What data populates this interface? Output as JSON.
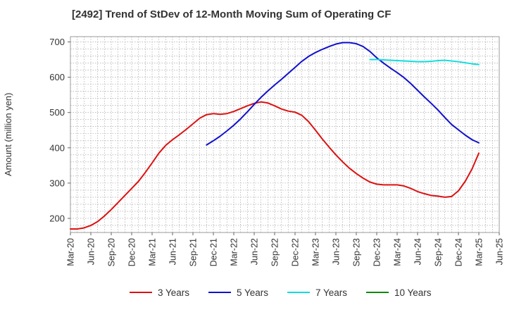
{
  "chart_data": {
    "type": "line",
    "title": "[2492]  Trend of StDev of 12-Month Moving Sum of Operating CF",
    "xlabel": "",
    "ylabel": "Amount (million yen)",
    "ylim": [
      160,
      715
    ],
    "yticks": [
      200,
      300,
      400,
      500,
      600,
      700
    ],
    "x_tick_labels": [
      "Mar-20",
      "Jun-20",
      "Sep-20",
      "Dec-20",
      "Mar-21",
      "Jun-21",
      "Sep-21",
      "Dec-21",
      "Mar-22",
      "Jun-22",
      "Sep-22",
      "Dec-22",
      "Mar-23",
      "Jun-23",
      "Sep-23",
      "Dec-23",
      "Mar-24",
      "Jun-24",
      "Sep-24",
      "Dec-24",
      "Mar-25",
      "Jun-25"
    ],
    "grid": true,
    "legend_position": "bottom",
    "series": [
      {
        "name": "3 Years",
        "color": "#dd1111",
        "values": [
          [
            "Mar-20",
            170
          ],
          [
            "Apr-20",
            170
          ],
          [
            "May-20",
            173
          ],
          [
            "Jun-20",
            180
          ],
          [
            "Jul-20",
            191
          ],
          [
            "Aug-20",
            207
          ],
          [
            "Sep-20",
            225
          ],
          [
            "Oct-20",
            245
          ],
          [
            "Nov-20",
            265
          ],
          [
            "Dec-20",
            285
          ],
          [
            "Jan-21",
            305
          ],
          [
            "Feb-21",
            330
          ],
          [
            "Mar-21",
            357
          ],
          [
            "Apr-21",
            385
          ],
          [
            "May-21",
            407
          ],
          [
            "Jun-21",
            423
          ],
          [
            "Jul-21",
            437
          ],
          [
            "Aug-21",
            452
          ],
          [
            "Sep-21",
            468
          ],
          [
            "Oct-21",
            484
          ],
          [
            "Nov-21",
            494
          ],
          [
            "Dec-21",
            497
          ],
          [
            "Jan-22",
            495
          ],
          [
            "Feb-22",
            497
          ],
          [
            "Mar-22",
            503
          ],
          [
            "Apr-22",
            511
          ],
          [
            "May-22",
            519
          ],
          [
            "Jun-22",
            526
          ],
          [
            "Jul-22",
            530
          ],
          [
            "Aug-22",
            527
          ],
          [
            "Sep-22",
            519
          ],
          [
            "Oct-22",
            510
          ],
          [
            "Nov-22",
            504
          ],
          [
            "Dec-22",
            501
          ],
          [
            "Jan-23",
            492
          ],
          [
            "Feb-23",
            474
          ],
          [
            "Mar-23",
            450
          ],
          [
            "Apr-23",
            425
          ],
          [
            "May-23",
            402
          ],
          [
            "Jun-23",
            380
          ],
          [
            "Jul-23",
            360
          ],
          [
            "Aug-23",
            342
          ],
          [
            "Sep-23",
            327
          ],
          [
            "Oct-23",
            314
          ],
          [
            "Nov-23",
            303
          ],
          [
            "Dec-23",
            297
          ],
          [
            "Jan-24",
            295
          ],
          [
            "Feb-24",
            295
          ],
          [
            "Mar-24",
            295
          ],
          [
            "Apr-24",
            292
          ],
          [
            "May-24",
            285
          ],
          [
            "Jun-24",
            276
          ],
          [
            "Jul-24",
            270
          ],
          [
            "Aug-24",
            265
          ],
          [
            "Sep-24",
            263
          ],
          [
            "Oct-24",
            260
          ],
          [
            "Nov-24",
            262
          ],
          [
            "Dec-24",
            278
          ],
          [
            "Jan-25",
            305
          ],
          [
            "Feb-25",
            340
          ],
          [
            "Mar-25",
            385
          ]
        ]
      },
      {
        "name": "5 Years",
        "color": "#1111cc",
        "values": [
          [
            "Nov-21",
            408
          ],
          [
            "Dec-21",
            420
          ],
          [
            "Jan-22",
            433
          ],
          [
            "Feb-22",
            448
          ],
          [
            "Mar-22",
            464
          ],
          [
            "Apr-22",
            482
          ],
          [
            "May-22",
            502
          ],
          [
            "Jun-22",
            523
          ],
          [
            "Jul-22",
            543
          ],
          [
            "Aug-22",
            561
          ],
          [
            "Sep-22",
            578
          ],
          [
            "Oct-22",
            594
          ],
          [
            "Nov-22",
            611
          ],
          [
            "Dec-22",
            628
          ],
          [
            "Jan-23",
            645
          ],
          [
            "Feb-23",
            659
          ],
          [
            "Mar-23",
            670
          ],
          [
            "Apr-23",
            679
          ],
          [
            "May-23",
            687
          ],
          [
            "Jun-23",
            694
          ],
          [
            "Jul-23",
            698
          ],
          [
            "Aug-23",
            698
          ],
          [
            "Sep-23",
            695
          ],
          [
            "Oct-23",
            687
          ],
          [
            "Nov-23",
            673
          ],
          [
            "Dec-23",
            655
          ],
          [
            "Jan-24",
            640
          ],
          [
            "Feb-24",
            626
          ],
          [
            "Mar-24",
            613
          ],
          [
            "Apr-24",
            599
          ],
          [
            "May-24",
            582
          ],
          [
            "Jun-24",
            563
          ],
          [
            "Jul-24",
            544
          ],
          [
            "Aug-24",
            526
          ],
          [
            "Sep-24",
            507
          ],
          [
            "Oct-24",
            486
          ],
          [
            "Nov-24",
            466
          ],
          [
            "Dec-24",
            451
          ],
          [
            "Jan-25",
            436
          ],
          [
            "Feb-25",
            423
          ],
          [
            "Mar-25",
            414
          ]
        ]
      },
      {
        "name": "7 Years",
        "color": "#11dddd",
        "values": [
          [
            "Nov-23",
            650
          ],
          [
            "Dec-23",
            650
          ],
          [
            "Jan-24",
            649
          ],
          [
            "Feb-24",
            648
          ],
          [
            "Mar-24",
            647
          ],
          [
            "Apr-24",
            646
          ],
          [
            "May-24",
            645
          ],
          [
            "Jun-24",
            644
          ],
          [
            "Jul-24",
            644
          ],
          [
            "Aug-24",
            645
          ],
          [
            "Sep-24",
            647
          ],
          [
            "Oct-24",
            648
          ],
          [
            "Nov-24",
            646
          ],
          [
            "Dec-24",
            644
          ],
          [
            "Jan-25",
            641
          ],
          [
            "Feb-25",
            638
          ],
          [
            "Mar-25",
            636
          ]
        ]
      },
      {
        "name": "10 Years",
        "color": "#118811",
        "values": []
      }
    ]
  }
}
